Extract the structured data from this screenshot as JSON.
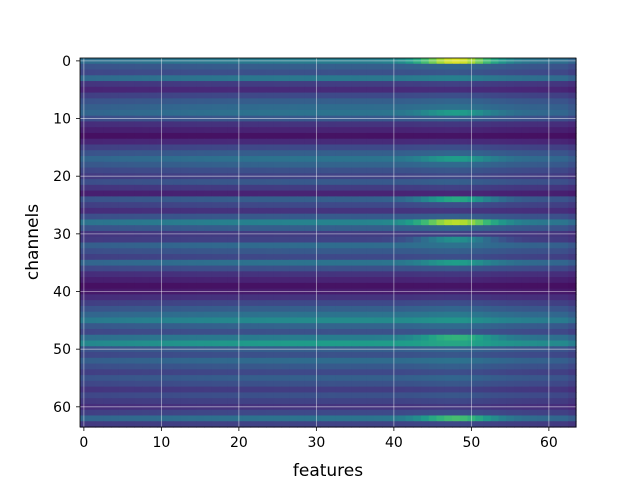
{
  "chart_data": {
    "type": "heatmap",
    "title": "",
    "xlabel": "features",
    "ylabel": "channels",
    "xlim": [
      -0.5,
      63.5
    ],
    "ylim": [
      63.5,
      -0.5
    ],
    "n_rows": 64,
    "n_cols": 64,
    "x_ticks": [
      0,
      10,
      20,
      30,
      40,
      50,
      60
    ],
    "y_ticks": [
      0,
      10,
      20,
      30,
      40,
      50,
      60
    ],
    "x_tick_labels": [
      "0",
      "10",
      "20",
      "30",
      "40",
      "50",
      "60"
    ],
    "y_tick_labels": [
      "0",
      "10",
      "20",
      "30",
      "40",
      "50",
      "60"
    ],
    "grid": true,
    "colormap": "viridis",
    "value_range": [
      0,
      1
    ],
    "row_levels": [
      0.42,
      0.3,
      0.25,
      0.4,
      0.18,
      0.12,
      0.22,
      0.3,
      0.35,
      0.38,
      0.28,
      0.15,
      0.1,
      0.05,
      0.12,
      0.22,
      0.3,
      0.38,
      0.32,
      0.25,
      0.2,
      0.28,
      0.18,
      0.1,
      0.3,
      0.22,
      0.15,
      0.28,
      0.45,
      0.3,
      0.18,
      0.2,
      0.35,
      0.28,
      0.22,
      0.38,
      0.25,
      0.15,
      0.1,
      0.05,
      0.08,
      0.15,
      0.22,
      0.3,
      0.38,
      0.48,
      0.32,
      0.25,
      0.42,
      0.55,
      0.3,
      0.25,
      0.35,
      0.28,
      0.22,
      0.3,
      0.25,
      0.18,
      0.25,
      0.2,
      0.15,
      0.22,
      0.38,
      0.2
    ],
    "feature_profile": {
      "band_center": 48,
      "band_width": 5,
      "row_bumps": [
        {
          "row": 0,
          "peak": 0.95
        },
        {
          "row": 9,
          "peak": 0.55
        },
        {
          "row": 17,
          "peak": 0.55
        },
        {
          "row": 24,
          "peak": 0.6
        },
        {
          "row": 28,
          "peak": 0.9
        },
        {
          "row": 31,
          "peak": 0.5
        },
        {
          "row": 35,
          "peak": 0.55
        },
        {
          "row": 48,
          "peak": 0.65
        },
        {
          "row": 62,
          "peak": 0.7
        }
      ]
    }
  }
}
